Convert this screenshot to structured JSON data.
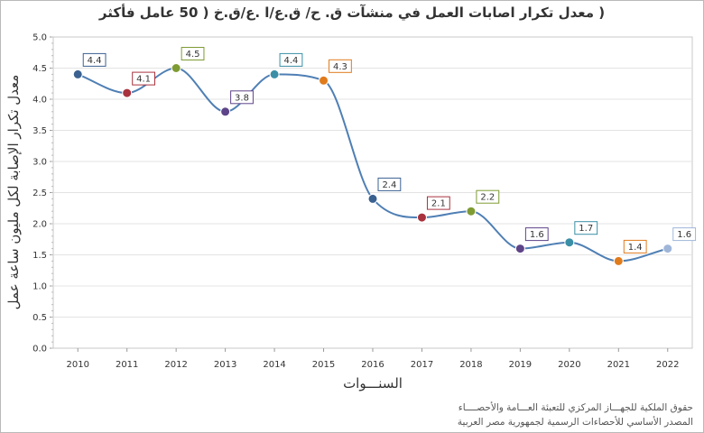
{
  "chart_data": {
    "type": "line",
    "title": "( معدل تكرار اصابات العمل في منشآت ق. ح/ ق.ع/ا .ع/ق.خ ( 50 عامل فأكثر",
    "xlabel": "السنـــوات",
    "ylabel": "معدل تكرار الإصابة لكل مليون ساعة عمل",
    "categories": [
      "2010",
      "2011",
      "2012",
      "2013",
      "2014",
      "2015",
      "2016",
      "2017",
      "2018",
      "2019",
      "2020",
      "2021",
      "2022"
    ],
    "values": [
      4.4,
      4.1,
      4.5,
      3.8,
      4.4,
      4.3,
      2.4,
      2.1,
      2.2,
      1.6,
      1.7,
      1.4,
      1.6
    ],
    "value_labels": [
      "4.4",
      "4.1",
      "4.5",
      "3.8",
      "4.4",
      "4.3",
      "2.4",
      "2.1",
      "2.2",
      "1.6",
      "1.7",
      "1.4",
      "1.6"
    ],
    "ylim": [
      0,
      5
    ],
    "yticks": [
      "0.0",
      "0.5",
      "1.0",
      "1.5",
      "2.0",
      "2.5",
      "3.0",
      "3.5",
      "4.0",
      "4.5",
      "5.0"
    ],
    "grid": true,
    "line_color": "#4f7fb4",
    "point_colors": [
      "#3a6190",
      "#a8323e",
      "#7f9b34",
      "#5e4488",
      "#3a8fa6",
      "#e07b1c",
      "#3a6190",
      "#a8323e",
      "#7f9b34",
      "#5e4488",
      "#3a8fa6",
      "#e07b1c",
      "#9fb6d9"
    ],
    "legend": "none"
  },
  "footer": {
    "line1": "حقوق الملكية للجهـــاز المركزي للتعبئة العـــامة والأحصــــاء",
    "line2": "المصدر الأساسي للأحصاءات الرسمية لجمهورية مصر العربية"
  }
}
